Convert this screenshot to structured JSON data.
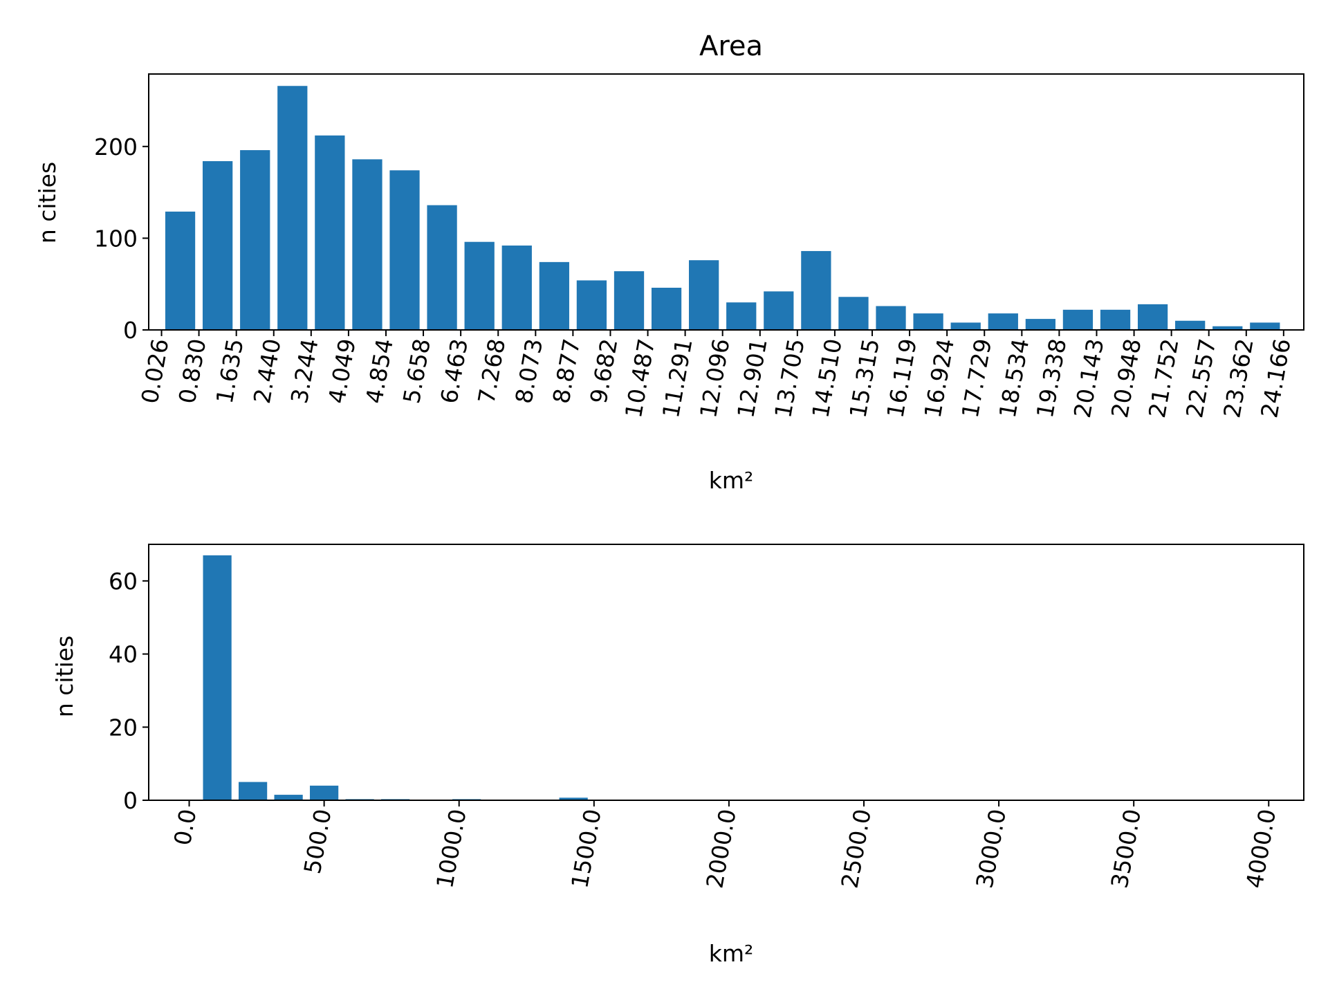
{
  "chart_data": [
    {
      "type": "bar",
      "title": "Area",
      "xlabel": "km²",
      "ylabel": "n cities",
      "bar_color": "#2077b4",
      "xlim": [
        -0.25,
        24.6
      ],
      "ylim": [
        0,
        279
      ],
      "x_ticks": [
        0.026,
        0.83,
        1.635,
        2.44,
        3.244,
        4.049,
        4.854,
        5.658,
        6.463,
        7.268,
        8.073,
        8.877,
        9.682,
        10.487,
        11.291,
        12.096,
        12.901,
        13.705,
        14.51,
        15.315,
        16.119,
        16.924,
        17.729,
        18.534,
        19.338,
        20.143,
        20.948,
        21.752,
        22.557,
        23.362,
        24.166
      ],
      "x_tick_labels": [
        "0.026",
        "0.830",
        "1.635",
        "2.440",
        "3.244",
        "4.049",
        "4.854",
        "5.658",
        "6.463",
        "7.268",
        "8.073",
        "8.877",
        "9.682",
        "10.487",
        "11.291",
        "12.096",
        "12.901",
        "13.705",
        "14.510",
        "15.315",
        "16.119",
        "16.924",
        "17.729",
        "18.534",
        "19.338",
        "20.143",
        "20.948",
        "21.752",
        "22.557",
        "23.362",
        "24.166"
      ],
      "y_ticks": [
        0,
        100,
        200
      ],
      "y_tick_labels": [
        "0",
        "100",
        "200"
      ],
      "bin_edges": [
        0.026,
        0.83,
        1.635,
        2.44,
        3.244,
        4.049,
        4.854,
        5.658,
        6.463,
        7.268,
        8.073,
        8.877,
        9.682,
        10.487,
        11.291,
        12.096,
        12.901,
        13.705,
        14.51,
        15.315,
        16.119,
        16.924,
        17.729,
        18.534,
        19.338,
        20.143,
        20.948,
        21.752,
        22.557,
        23.362,
        24.166
      ],
      "values": [
        129,
        184,
        196,
        266,
        212,
        186,
        174,
        136,
        96,
        92,
        74,
        54,
        64,
        46,
        76,
        30,
        42,
        86,
        36,
        26,
        18,
        8,
        18,
        12,
        22,
        22,
        28,
        10,
        4,
        8
      ]
    },
    {
      "type": "bar",
      "title": "",
      "xlabel": "km²",
      "ylabel": "n cities",
      "bar_color": "#2077b4",
      "xlim": [
        -150,
        4130
      ],
      "ylim": [
        0,
        70
      ],
      "x_ticks": [
        0,
        500,
        1000,
        1500,
        2000,
        2500,
        3000,
        3500,
        4000
      ],
      "x_tick_labels": [
        "0.0",
        "500.0",
        "1000.0",
        "1500.0",
        "2000.0",
        "2500.0",
        "3000.0",
        "3500.0",
        "4000.0"
      ],
      "y_ticks": [
        0,
        20,
        40,
        60
      ],
      "y_tick_labels": [
        "0",
        "20",
        "40",
        "60"
      ],
      "bin_edges": [
        38,
        170,
        302,
        434,
        566,
        698,
        830,
        962,
        1094,
        1226,
        1358,
        1490
      ],
      "values": [
        67,
        5,
        1.5,
        4,
        0.3,
        0.3,
        0,
        0.3,
        0,
        0,
        0.7
      ]
    }
  ]
}
